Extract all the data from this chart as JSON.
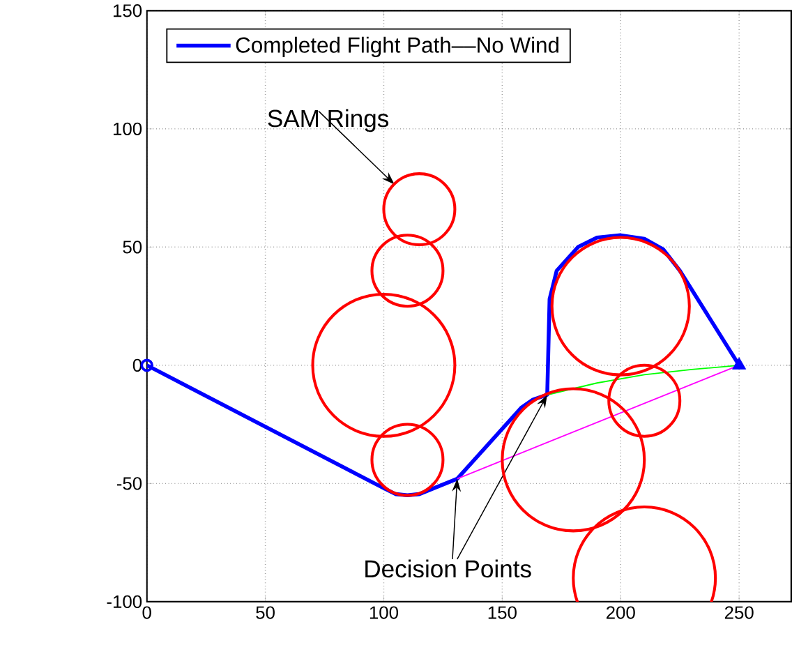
{
  "chart_data": {
    "type": "line",
    "xlim": [
      0,
      272
    ],
    "ylim": [
      -100,
      150
    ],
    "xticks": [
      0,
      50,
      100,
      150,
      200,
      250
    ],
    "yticks": [
      -100,
      -50,
      0,
      50,
      100,
      150
    ],
    "grid": true,
    "legend": "top",
    "line_style": "solid",
    "series": [
      {
        "name": "Completed Flight Path––No Wind",
        "color": "#0000ff",
        "x": [
          0,
          100,
          105,
          110,
          115,
          131,
          158,
          163,
          169,
          170,
          173,
          182,
          190,
          200,
          210,
          218,
          225,
          250
        ],
        "values": [
          0,
          -52,
          -54.5,
          -55,
          -54.5,
          -48,
          -18,
          -14.5,
          -12.5,
          28,
          40,
          50,
          54,
          55,
          53.5,
          49,
          40,
          0
        ]
      },
      {
        "type": "line",
        "color": "#ff00ff",
        "x": [
          131,
          250
        ],
        "values": [
          -48,
          0
        ]
      },
      {
        "type": "line",
        "color": "#00ff00",
        "x": [
          169,
          190,
          210,
          230,
          250
        ],
        "values": [
          -12.5,
          -7.5,
          -4,
          -1.8,
          0
        ]
      },
      {
        "type": "scatter",
        "marker": "circle",
        "color": "#0000ff",
        "x": [
          0
        ],
        "values": [
          0
        ]
      },
      {
        "type": "scatter",
        "marker": "triangle",
        "color": "#0000ff",
        "x": [
          250
        ],
        "values": [
          0
        ]
      }
    ],
    "annotations": [
      "SAM Rings",
      {
        "text": "Decision Points",
        "x": 131,
        "y": -48
      }
    ]
  }
}
